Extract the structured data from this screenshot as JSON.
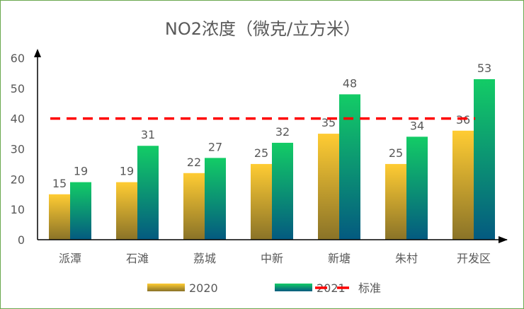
{
  "chart_data": {
    "type": "bar",
    "title": "NO2浓度（微克/立方米）",
    "categories": [
      "派潭",
      "石滩",
      "荔城",
      "中新",
      "新塘",
      "朱村",
      "开发区"
    ],
    "series": [
      {
        "name": "2020",
        "values": [
          15,
          19,
          22,
          25,
          35,
          25,
          36
        ],
        "gradient": [
          "#ffcc33",
          "#8a7328"
        ]
      },
      {
        "name": "2021",
        "values": [
          19,
          31,
          27,
          32,
          48,
          34,
          53
        ],
        "gradient": [
          "#13cc66",
          "#045a80"
        ]
      }
    ],
    "reference_line": {
      "name": "标准",
      "value": 40,
      "color": "#ff0000",
      "style": "dashed"
    },
    "ylim": [
      0,
      60
    ],
    "yticks": [
      0,
      10,
      20,
      30,
      40,
      50,
      60
    ],
    "grid": false,
    "data_labels": true,
    "legend_position": "bottom"
  }
}
